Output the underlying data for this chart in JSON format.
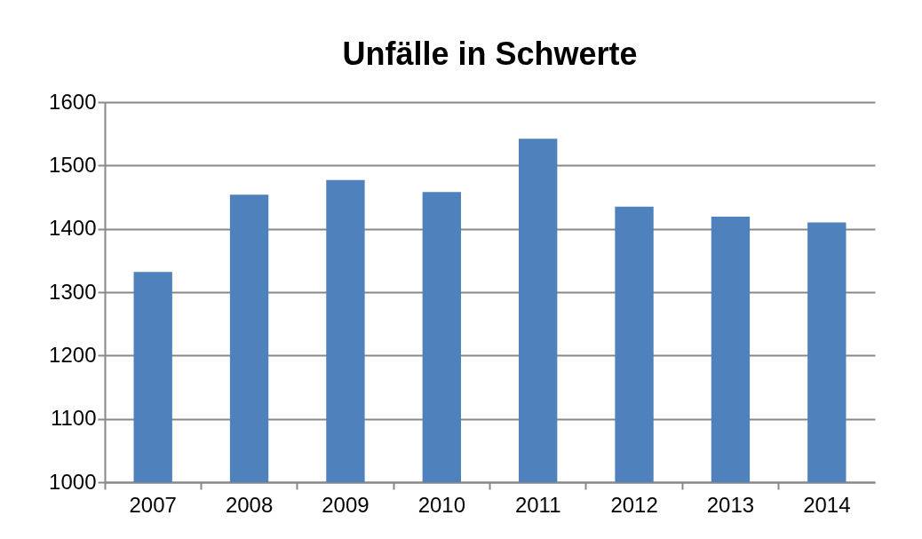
{
  "chart_data": {
    "type": "bar",
    "title": "Unfälle in Schwerte",
    "categories": [
      "2007",
      "2008",
      "2009",
      "2010",
      "2011",
      "2012",
      "2013",
      "2014"
    ],
    "values": [
      1332,
      1454,
      1477,
      1458,
      1542,
      1435,
      1419,
      1410
    ],
    "color": "#4f81bd",
    "ylim": [
      1000,
      1600
    ],
    "yticks": [
      1000,
      1100,
      1200,
      1300,
      1400,
      1500,
      1600
    ],
    "grid": "y"
  }
}
